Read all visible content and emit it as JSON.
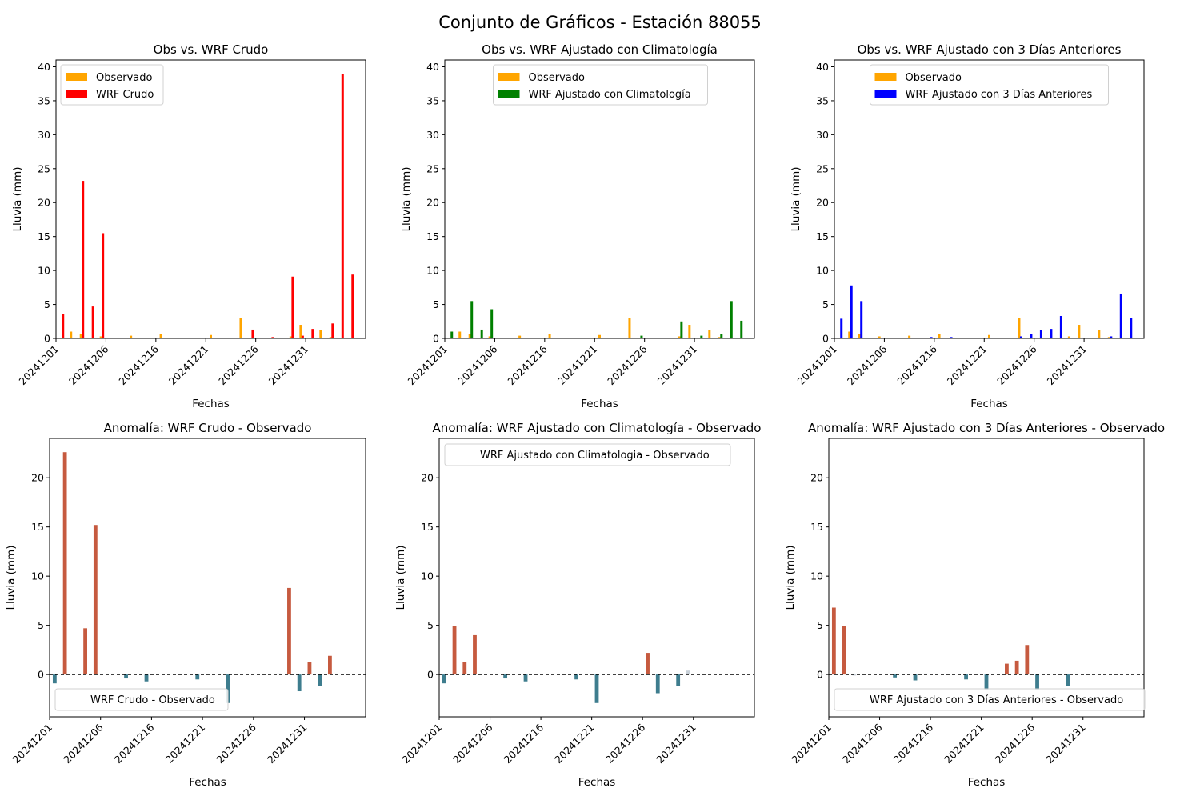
{
  "figure": {
    "title": "Conjunto de Gráficos - Estación 88055",
    "colors": {
      "observado": "#ffa500",
      "crudo": "#ff0000",
      "climatologia": "#008000",
      "tres_dias": "#0000ff",
      "anomalia_positiva": "#c65a3f",
      "anomalia_negativa": "#3e7d8e",
      "anomalia_cero": "#c8d0d8"
    }
  },
  "chart_data": [
    {
      "type": "bar",
      "title": "Obs vs. WRF Crudo",
      "xlabel": "Fechas",
      "ylabel": "Lluvia (mm)",
      "x_ticks": [
        "20241201",
        "20241206",
        "20241216",
        "20241221",
        "20241226",
        "20241231"
      ],
      "ylim": [
        0,
        41
      ],
      "y_ticks": [
        0,
        5,
        10,
        15,
        20,
        25,
        30,
        35,
        40
      ],
      "legend_position": "upper-left",
      "series": [
        {
          "name": "Observado",
          "color": "#ffa500",
          "values": [
            0.0,
            1.0,
            0.6,
            0.0,
            0.3,
            0.0,
            0.0,
            0.4,
            0.0,
            0.0,
            0.7,
            0.0,
            0.0,
            0.0,
            0.0,
            0.5,
            0.0,
            0.0,
            3.0,
            0.0,
            0.0,
            0.0,
            0.0,
            0.3,
            2.0,
            0.0,
            1.2,
            0.2,
            0.0,
            0.0
          ]
        },
        {
          "name": "WRF Crudo",
          "color": "#ff0000",
          "values": [
            3.6,
            0.0,
            23.2,
            4.7,
            15.5,
            0.0,
            0.0,
            0.0,
            0.0,
            0.0,
            0.0,
            0.0,
            0.0,
            0.0,
            0.0,
            0.0,
            0.0,
            0.0,
            0.1,
            1.3,
            0.1,
            0.2,
            0.0,
            9.1,
            0.4,
            1.4,
            0.0,
            2.2,
            38.9,
            9.4
          ]
        }
      ]
    },
    {
      "type": "bar",
      "title": "Obs vs. WRF Ajustado con Climatología",
      "xlabel": "Fechas",
      "ylabel": "Lluvia (mm)",
      "x_ticks": [
        "20241201",
        "20241206",
        "20241216",
        "20241221",
        "20241226",
        "20241231"
      ],
      "ylim": [
        0,
        41
      ],
      "y_ticks": [
        0,
        5,
        10,
        15,
        20,
        25,
        30,
        35,
        40
      ],
      "legend_position": "upper-center",
      "series": [
        {
          "name": "Observado",
          "color": "#ffa500",
          "values": [
            0.0,
            1.0,
            0.6,
            0.0,
            0.3,
            0.0,
            0.0,
            0.4,
            0.0,
            0.0,
            0.7,
            0.0,
            0.0,
            0.0,
            0.0,
            0.5,
            0.0,
            0.0,
            3.0,
            0.0,
            0.0,
            0.0,
            0.0,
            0.3,
            2.0,
            0.0,
            1.2,
            0.2,
            0.0,
            0.0
          ]
        },
        {
          "name": "WRF Ajustado con Climatología",
          "color": "#008000",
          "values": [
            1.0,
            0.0,
            5.5,
            1.3,
            4.3,
            0.0,
            0.0,
            0.0,
            0.0,
            0.0,
            0.0,
            0.0,
            0.0,
            0.0,
            0.0,
            0.0,
            0.0,
            0.0,
            0.0,
            0.4,
            0.0,
            0.1,
            0.0,
            2.5,
            0.0,
            0.4,
            0.0,
            0.6,
            5.5,
            2.6
          ]
        }
      ]
    },
    {
      "type": "bar",
      "title": "Obs vs. WRF Ajustado con 3 Días Anteriores",
      "xlabel": "Fechas",
      "ylabel": "Lluvia (mm)",
      "x_ticks": [
        "20241201",
        "20241206",
        "20241216",
        "20241221",
        "20241226",
        "20241231"
      ],
      "ylim": [
        0,
        41
      ],
      "y_ticks": [
        0,
        5,
        10,
        15,
        20,
        25,
        30,
        35,
        40
      ],
      "legend_position": "upper-center",
      "series": [
        {
          "name": "Observado",
          "color": "#ffa500",
          "values": [
            0.0,
            1.0,
            0.6,
            0.0,
            0.3,
            0.0,
            0.0,
            0.4,
            0.0,
            0.0,
            0.7,
            0.0,
            0.0,
            0.0,
            0.0,
            0.5,
            0.0,
            0.0,
            3.0,
            0.0,
            0.0,
            0.0,
            0.0,
            0.3,
            2.0,
            0.0,
            1.2,
            0.2,
            0.0,
            0.0
          ]
        },
        {
          "name": "WRF Ajustado con 3 Días Anteriores",
          "color": "#0000ff",
          "values": [
            2.9,
            7.8,
            5.5,
            0.0,
            0.0,
            0.0,
            0.0,
            0.1,
            0.0,
            0.2,
            0.1,
            0.2,
            0.0,
            0.0,
            0.0,
            0.0,
            0.0,
            0.0,
            0.3,
            0.6,
            1.2,
            1.4,
            3.3,
            0.0,
            0.0,
            0.0,
            0.0,
            0.3,
            6.6,
            3.0
          ]
        }
      ]
    },
    {
      "type": "bar",
      "title": "Anomalía: WRF Crudo - Observado",
      "xlabel": "Fechas",
      "ylabel": "Lluvia (mm)",
      "x_ticks": [
        "20241201",
        "20241206",
        "20241216",
        "20241221",
        "20241226",
        "20241231"
      ],
      "ylim": [
        -4.3,
        24
      ],
      "y_ticks": [
        0,
        5,
        10,
        15,
        20
      ],
      "legend_position": "lower-left",
      "zero_line": "dashed",
      "series": [
        {
          "name": "WRF Crudo - Observado",
          "values": [
            -0.9,
            22.6,
            0.0,
            4.7,
            15.2,
            0.0,
            0.0,
            -0.4,
            0.0,
            -0.7,
            0.0,
            0.0,
            0.0,
            0.0,
            -0.5,
            0.0,
            0.0,
            -2.9,
            0.0,
            0.0,
            0.0,
            0.0,
            0.1,
            8.8,
            -1.7,
            1.3,
            -1.2,
            1.9,
            0.0,
            0.0
          ]
        }
      ]
    },
    {
      "type": "bar",
      "title": "Anomalía: WRF Ajustado con Climatología - Observado",
      "xlabel": "Fechas",
      "ylabel": "Lluvia (mm)",
      "x_ticks": [
        "20241201",
        "20241206",
        "20241216",
        "20241221",
        "20241226",
        "20241231"
      ],
      "ylim": [
        -4.3,
        24
      ],
      "y_ticks": [
        0,
        5,
        10,
        15,
        20
      ],
      "legend_position": "upper-left",
      "zero_line": "dashed",
      "series": [
        {
          "name": "WRF Ajustado con Climatologia - Observado",
          "values": [
            -0.9,
            4.9,
            1.3,
            4.0,
            0.0,
            0.0,
            -0.4,
            0.0,
            -0.7,
            0.0,
            0.0,
            0.0,
            0.0,
            -0.5,
            0.0,
            -2.9,
            0.0,
            0.0,
            0.0,
            0.1,
            2.2,
            -1.9,
            0.0,
            -1.2,
            0.4,
            0.0,
            0.0,
            0.0,
            0.0,
            0.0
          ]
        }
      ]
    },
    {
      "type": "bar",
      "title": "Anomalía: WRF Ajustado con 3 Días Anteriores - Observado",
      "xlabel": "Fechas",
      "ylabel": "Lluvia (mm)",
      "x_ticks": [
        "20241201",
        "20241206",
        "20241216",
        "20241221",
        "20241226",
        "20241231"
      ],
      "ylim": [
        -4.3,
        24
      ],
      "y_ticks": [
        0,
        5,
        10,
        15,
        20
      ],
      "legend_position": "lower-center",
      "zero_line": "dashed",
      "series": [
        {
          "name": "WRF Ajustado con 3 Días Anteriores - Observado",
          "values": [
            6.8,
            4.9,
            -0.1,
            0.0,
            0.0,
            0.0,
            -0.3,
            0.0,
            -0.6,
            0.1,
            0.0,
            0.0,
            0.0,
            -0.5,
            0.0,
            -1.6,
            0.0,
            1.1,
            1.4,
            3.0,
            -1.6,
            0.0,
            0.0,
            -1.2,
            0.0,
            0.0,
            0.0,
            0.0,
            0.0,
            0.0
          ]
        }
      ]
    }
  ]
}
